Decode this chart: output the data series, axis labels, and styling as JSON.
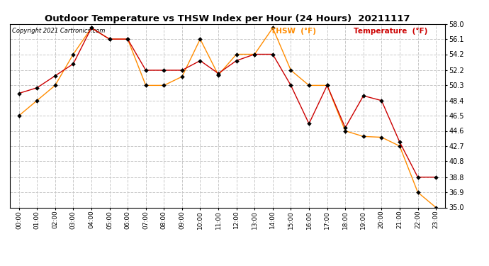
{
  "title": "Outdoor Temperature vs THSW Index per Hour (24 Hours)  20211117",
  "copyright": "Copyright 2021 Cartronics.com",
  "legend_thsw": "THSW  (°F)",
  "legend_temp": "Temperature  (°F)",
  "thsw_color": "#FF8C00",
  "temp_color": "#CC0000",
  "background_color": "#ffffff",
  "grid_color": "#c8c8c8",
  "hours": [
    "00:00",
    "01:00",
    "02:00",
    "03:00",
    "04:00",
    "05:00",
    "06:00",
    "07:00",
    "08:00",
    "09:00",
    "10:00",
    "11:00",
    "12:00",
    "13:00",
    "14:00",
    "15:00",
    "16:00",
    "17:00",
    "18:00",
    "19:00",
    "20:00",
    "21:00",
    "22:00",
    "23:00"
  ],
  "temperature": [
    49.3,
    50.0,
    51.5,
    53.0,
    57.5,
    56.1,
    56.1,
    52.2,
    52.2,
    52.2,
    53.4,
    51.8,
    53.4,
    54.2,
    54.2,
    50.3,
    45.5,
    50.3,
    45.0,
    49.0,
    48.4,
    43.2,
    38.8,
    38.8
  ],
  "thsw": [
    46.5,
    48.4,
    50.3,
    54.2,
    57.5,
    56.1,
    56.1,
    50.3,
    50.3,
    51.4,
    56.1,
    51.6,
    54.2,
    54.2,
    57.5,
    52.2,
    50.3,
    50.3,
    44.6,
    43.9,
    43.8,
    42.7,
    36.9,
    35.0
  ],
  "ylim_min": 35.0,
  "ylim_max": 58.0,
  "yticks": [
    35.0,
    36.9,
    38.8,
    40.8,
    42.7,
    44.6,
    46.5,
    48.4,
    50.3,
    52.2,
    54.2,
    56.1,
    58.0
  ]
}
